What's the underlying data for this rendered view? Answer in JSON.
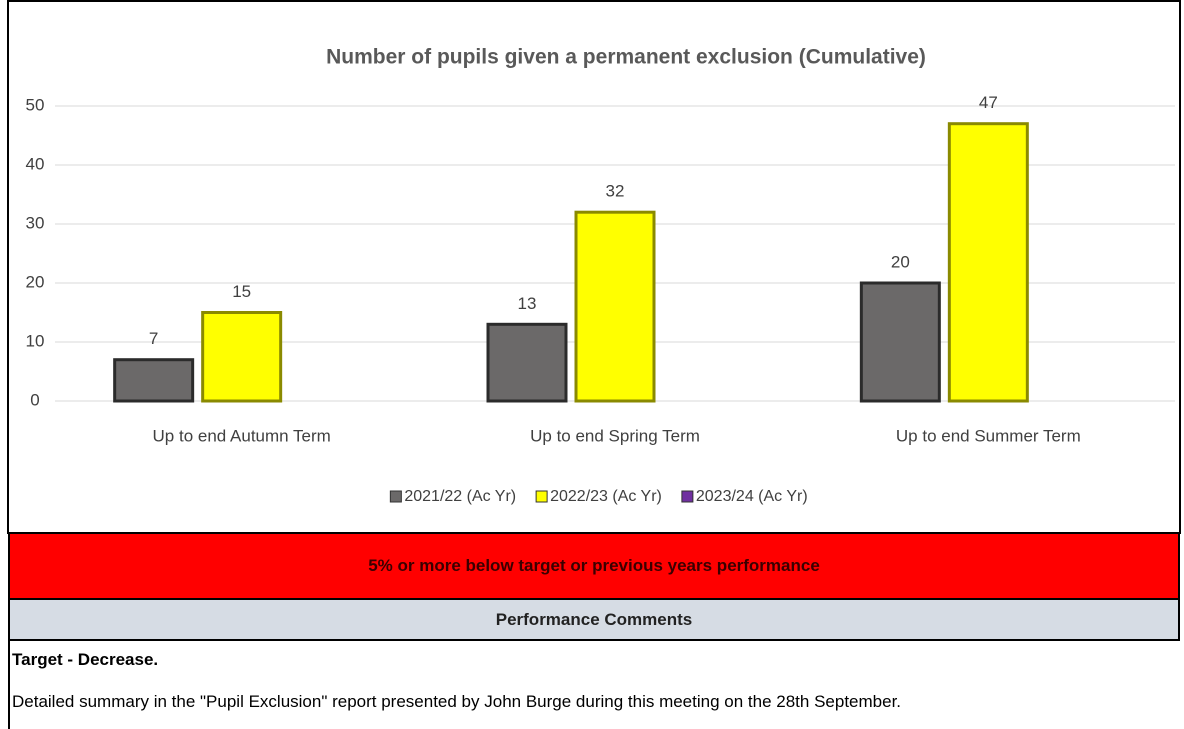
{
  "chart_data": {
    "type": "bar",
    "title": "Number of pupils given a permanent exclusion (Cumulative)",
    "categories": [
      "Up to end Autumn Term",
      "Up to end Spring Term",
      "Up to end Summer Term"
    ],
    "series": [
      {
        "name": "2021/22 (Ac Yr)",
        "color": "#6b6969",
        "values": [
          7,
          13,
          20
        ]
      },
      {
        "name": "2022/23 (Ac Yr)",
        "color": "#ffff00",
        "values": [
          15,
          32,
          47
        ]
      },
      {
        "name": "2023/24 (Ac Yr)",
        "color": "#7030a0",
        "values": [
          null,
          null,
          null
        ]
      }
    ],
    "ylim": [
      0,
      50
    ],
    "yticks": [
      0,
      10,
      20,
      30,
      40,
      50
    ],
    "grid": true,
    "legend": "bottom"
  },
  "status": {
    "text": "5% or more below target or previous years performance",
    "color": "#ff0000"
  },
  "comments": {
    "header": "Performance Comments",
    "target": "Target - Decrease.",
    "detail": "Detailed summary in the \"Pupil Exclusion\" report presented by John Burge during this meeting on the 28th September."
  }
}
